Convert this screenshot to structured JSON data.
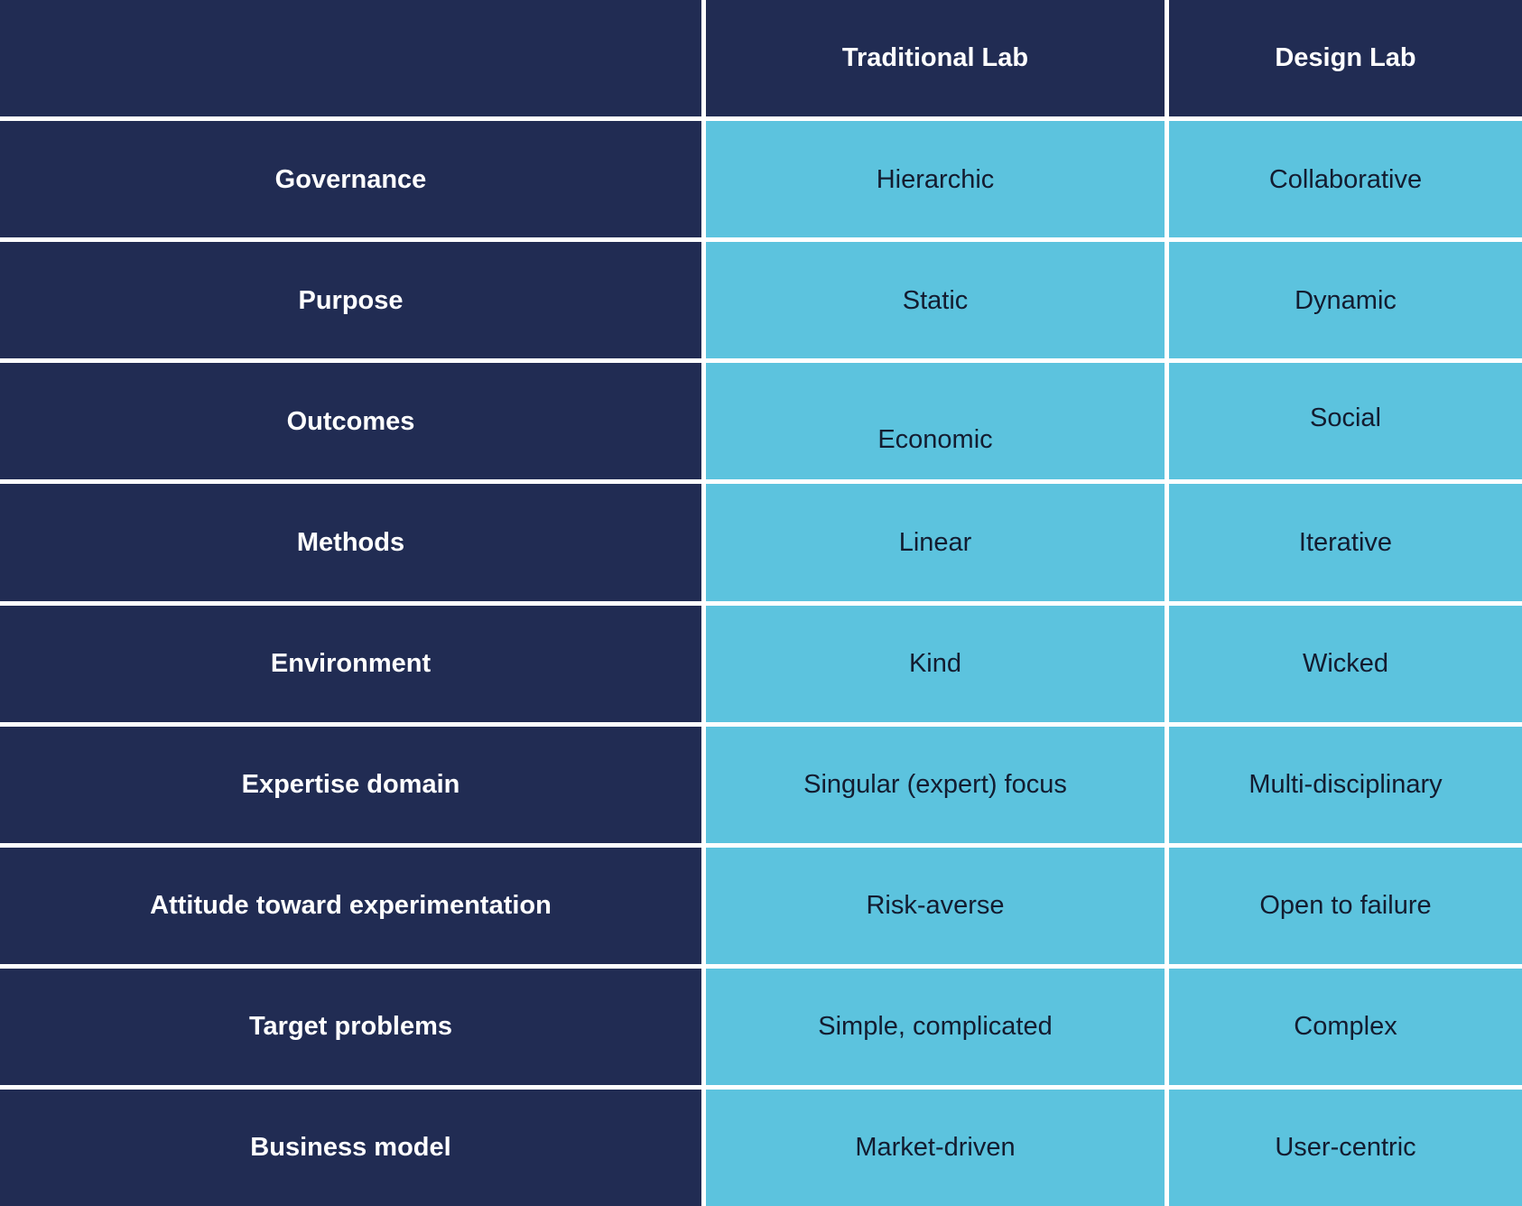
{
  "table": {
    "header": {
      "corner": "",
      "col_traditional": "Traditional Lab",
      "col_design": "Design Lab"
    },
    "rows": [
      {
        "label": "Governance",
        "traditional": "Hierarchic",
        "design": "Collaborative"
      },
      {
        "label": "Purpose",
        "traditional": "Static",
        "design": "Dynamic"
      },
      {
        "label": "Outcomes",
        "traditional": "Economic",
        "design": "Social"
      },
      {
        "label": "Methods",
        "traditional": "Linear",
        "design": "Iterative"
      },
      {
        "label": "Environment",
        "traditional": "Kind",
        "design": "Wicked"
      },
      {
        "label": "Expertise domain",
        "traditional": "Singular (expert) focus",
        "design": "Multi-disciplinary"
      },
      {
        "label": "Attitude toward experimentation",
        "traditional": "Risk-averse",
        "design": "Open to failure"
      },
      {
        "label": "Target problems",
        "traditional": "Simple, complicated",
        "design": "Complex"
      },
      {
        "label": "Business model",
        "traditional": "Market-driven",
        "design": "User-centric"
      }
    ]
  },
  "colors": {
    "header_bg": "#212c53",
    "label_bg": "#212c53",
    "value_bg": "#5cc3de",
    "gridline": "#ffffff",
    "header_text": "#ffffff",
    "value_text": "#131c30"
  }
}
